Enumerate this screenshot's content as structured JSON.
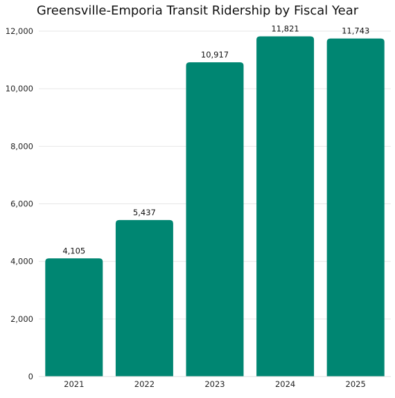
{
  "chart_data": {
    "type": "bar",
    "title": "Greensville-Emporia Transit Ridership by Fiscal Year",
    "xlabel": "",
    "ylabel": "",
    "categories": [
      "2021",
      "2022",
      "2023",
      "2024",
      "2025"
    ],
    "values": [
      4105,
      5437,
      10917,
      11821,
      11743
    ],
    "data_labels": [
      "4,105",
      "5,437",
      "10,917",
      "11,821",
      "11,743"
    ],
    "ylim": [
      0,
      12000
    ],
    "yticks": [
      0,
      2000,
      4000,
      6000,
      8000,
      10000,
      12000
    ],
    "ytick_labels": [
      "0",
      "2,000",
      "4,000",
      "6,000",
      "8,000",
      "10,000",
      "12,000"
    ],
    "grid": true,
    "legend": "none",
    "bar_color": "#008672"
  }
}
